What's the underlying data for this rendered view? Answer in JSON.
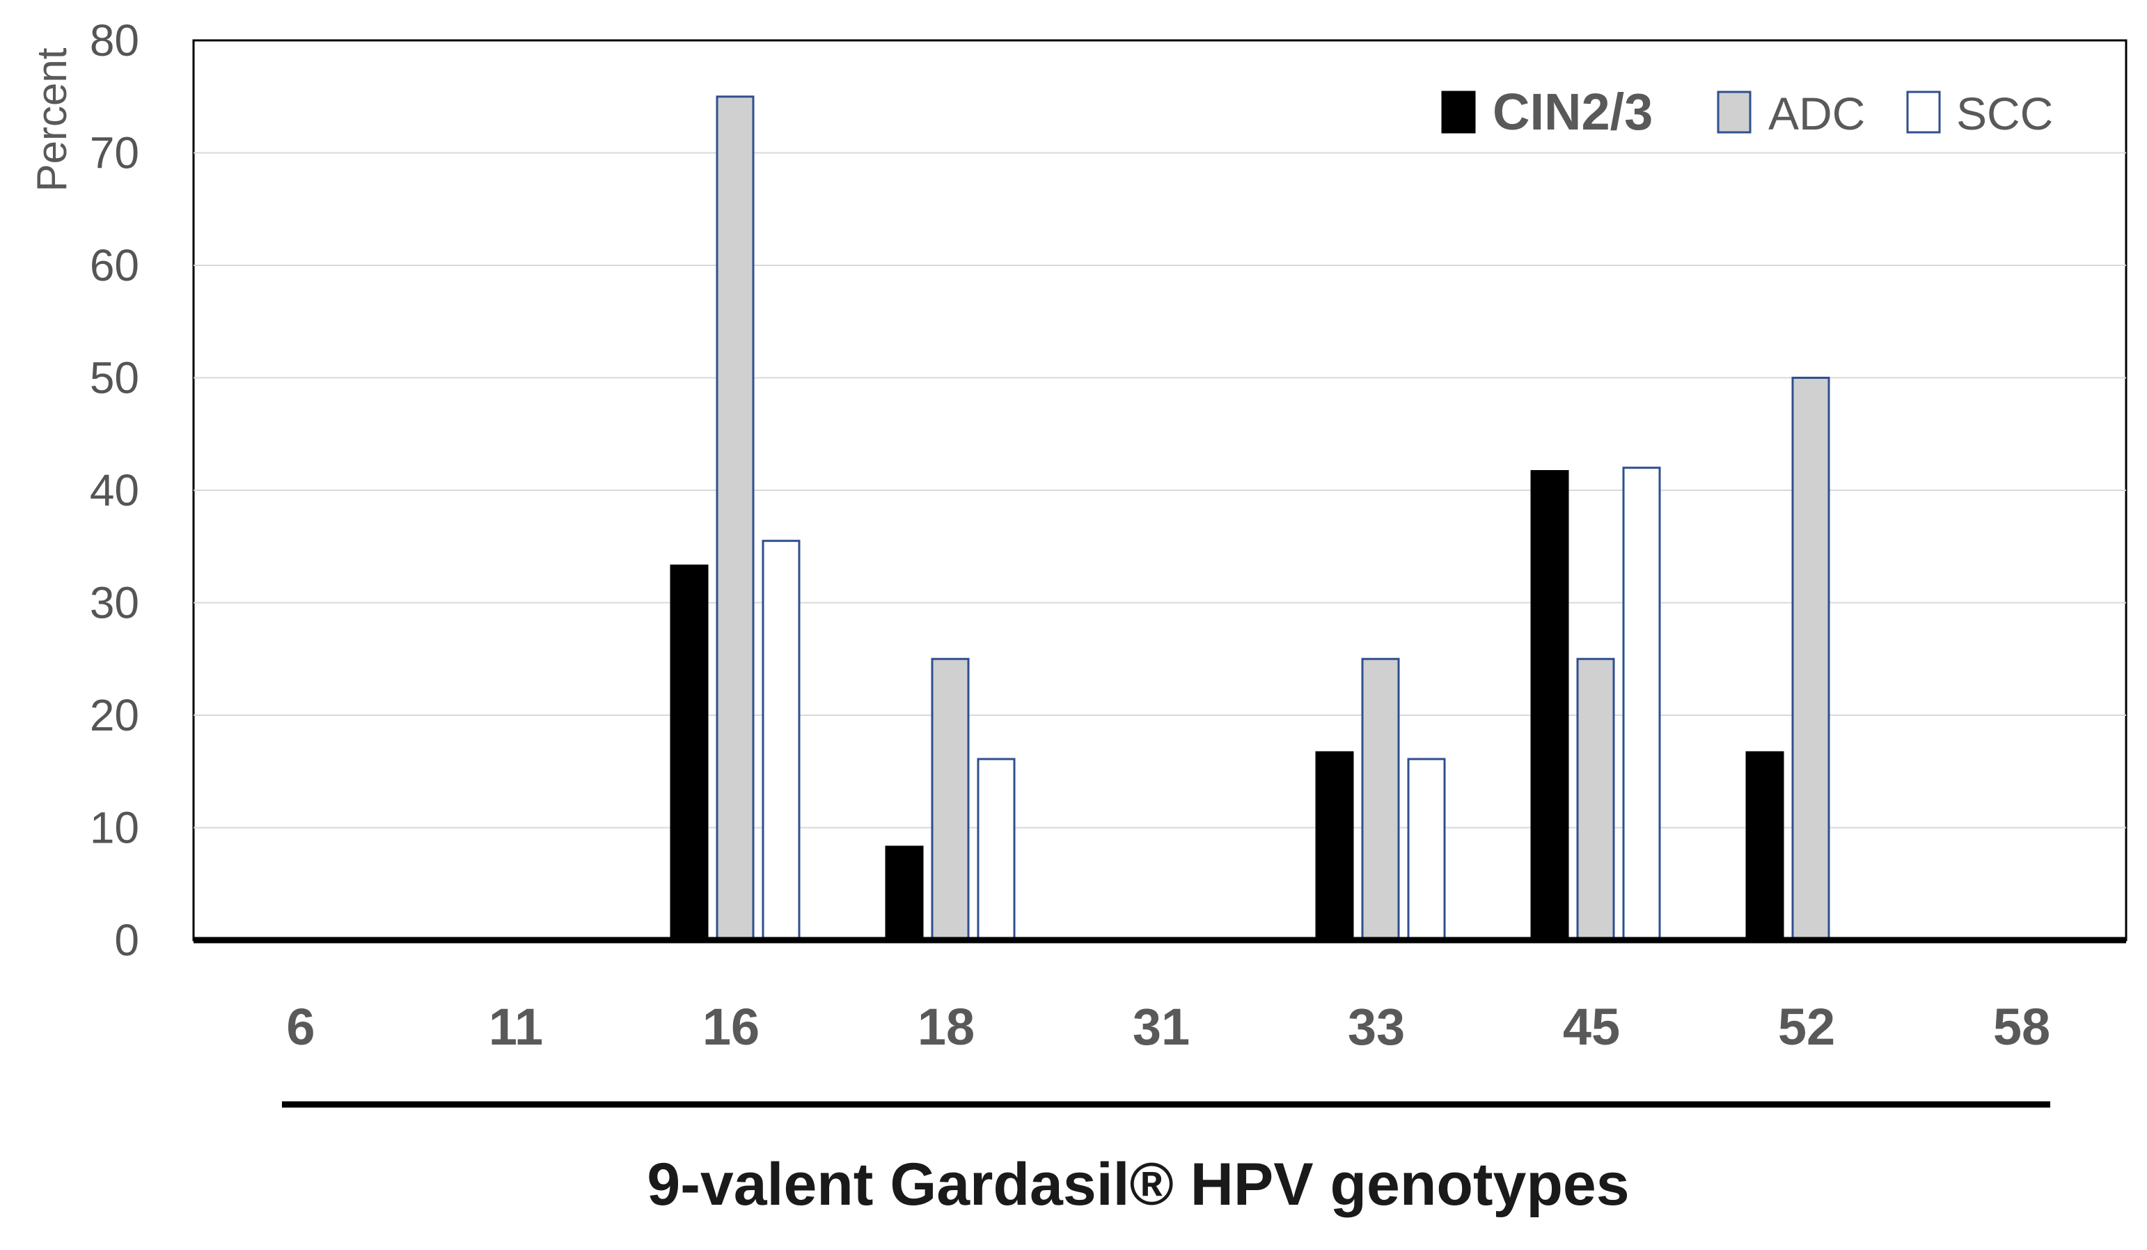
{
  "chart_data": {
    "type": "bar",
    "title": "",
    "ylabel": "Percent",
    "xlabel": "9-valent Gardasil® HPV genotypes",
    "ylim": [
      0,
      80
    ],
    "yticks": [
      "0",
      "10",
      "20",
      "30",
      "40",
      "50",
      "60",
      "70",
      "80"
    ],
    "categories": [
      "6",
      "11",
      "16",
      "18",
      "31",
      "33",
      "45",
      "52",
      "58"
    ],
    "series": [
      {
        "name": "CIN2/3",
        "values": [
          0,
          0,
          33.3,
          8.3,
          0,
          16.7,
          41.7,
          16.7,
          0
        ],
        "color": "#000000",
        "stroke": "#000000"
      },
      {
        "name": "ADC",
        "values": [
          0,
          0,
          75,
          25,
          0,
          25,
          25,
          50,
          0
        ],
        "color": "#d0d0d0",
        "stroke": "#2f4f8f"
      },
      {
        "name": "SCC",
        "values": [
          0,
          0,
          35.5,
          16.1,
          0,
          16.1,
          42,
          0,
          0
        ],
        "color": "#ffffff",
        "stroke": "#2f4f8f"
      }
    ],
    "grid": true,
    "legend_position": "top-right"
  }
}
